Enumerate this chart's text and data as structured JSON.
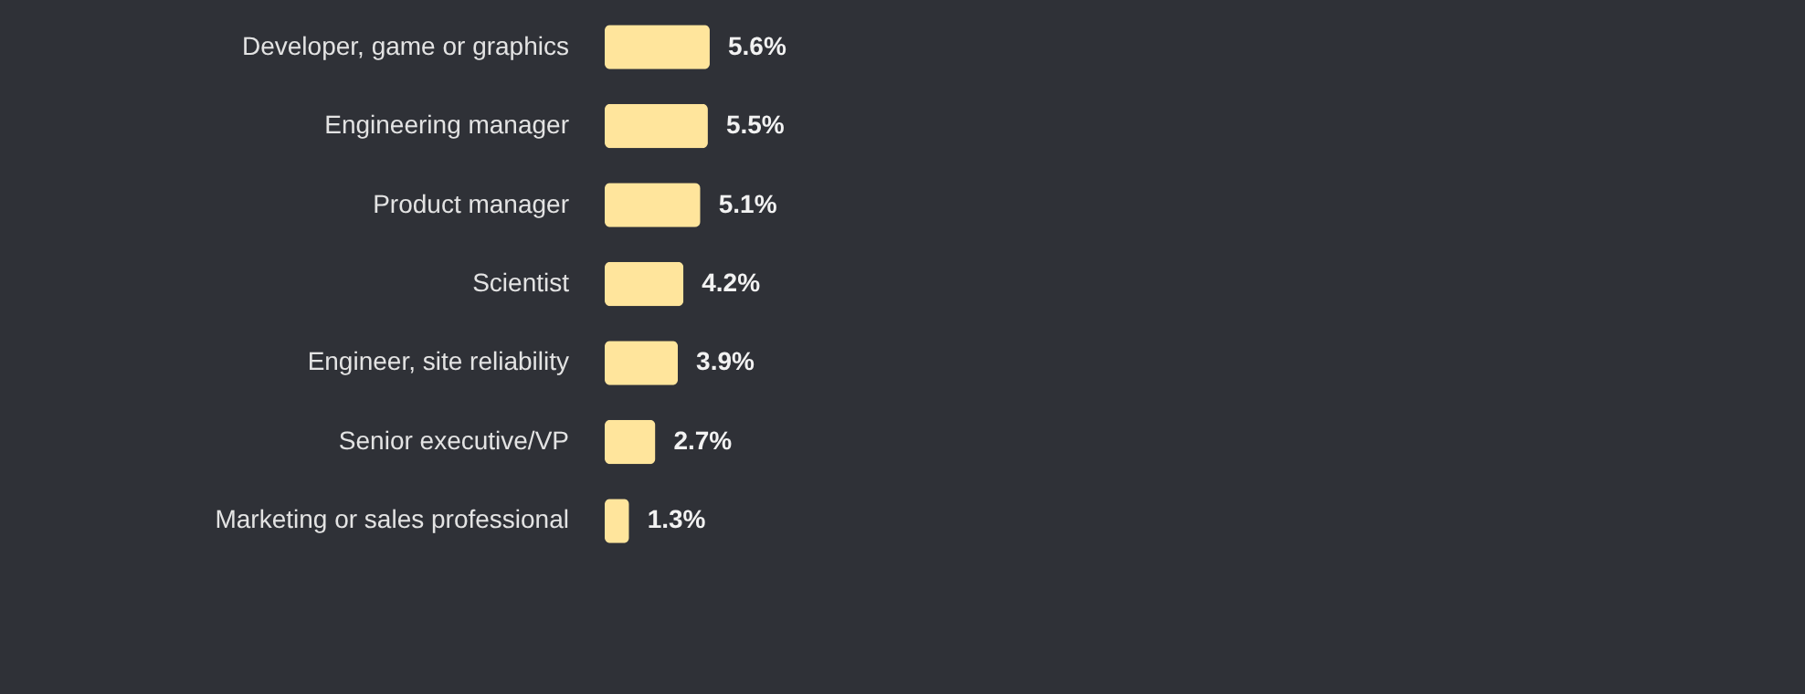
{
  "chart_data": {
    "type": "bar",
    "orientation": "horizontal",
    "categories": [
      "Developer, game or graphics",
      "Engineering manager",
      "Product manager",
      "Scientist",
      "Engineer, site reliability",
      "Senior executive/VP",
      "Marketing or sales professional"
    ],
    "values": [
      5.6,
      5.5,
      5.1,
      4.2,
      3.9,
      2.7,
      1.3
    ],
    "value_labels": [
      "5.6%",
      "5.5%",
      "5.1%",
      "4.2%",
      "3.9%",
      "2.7%",
      "1.3%"
    ],
    "color": "#ffe59c",
    "xlim": [
      0,
      64
    ],
    "tick_labels": "y",
    "grid": false
  }
}
